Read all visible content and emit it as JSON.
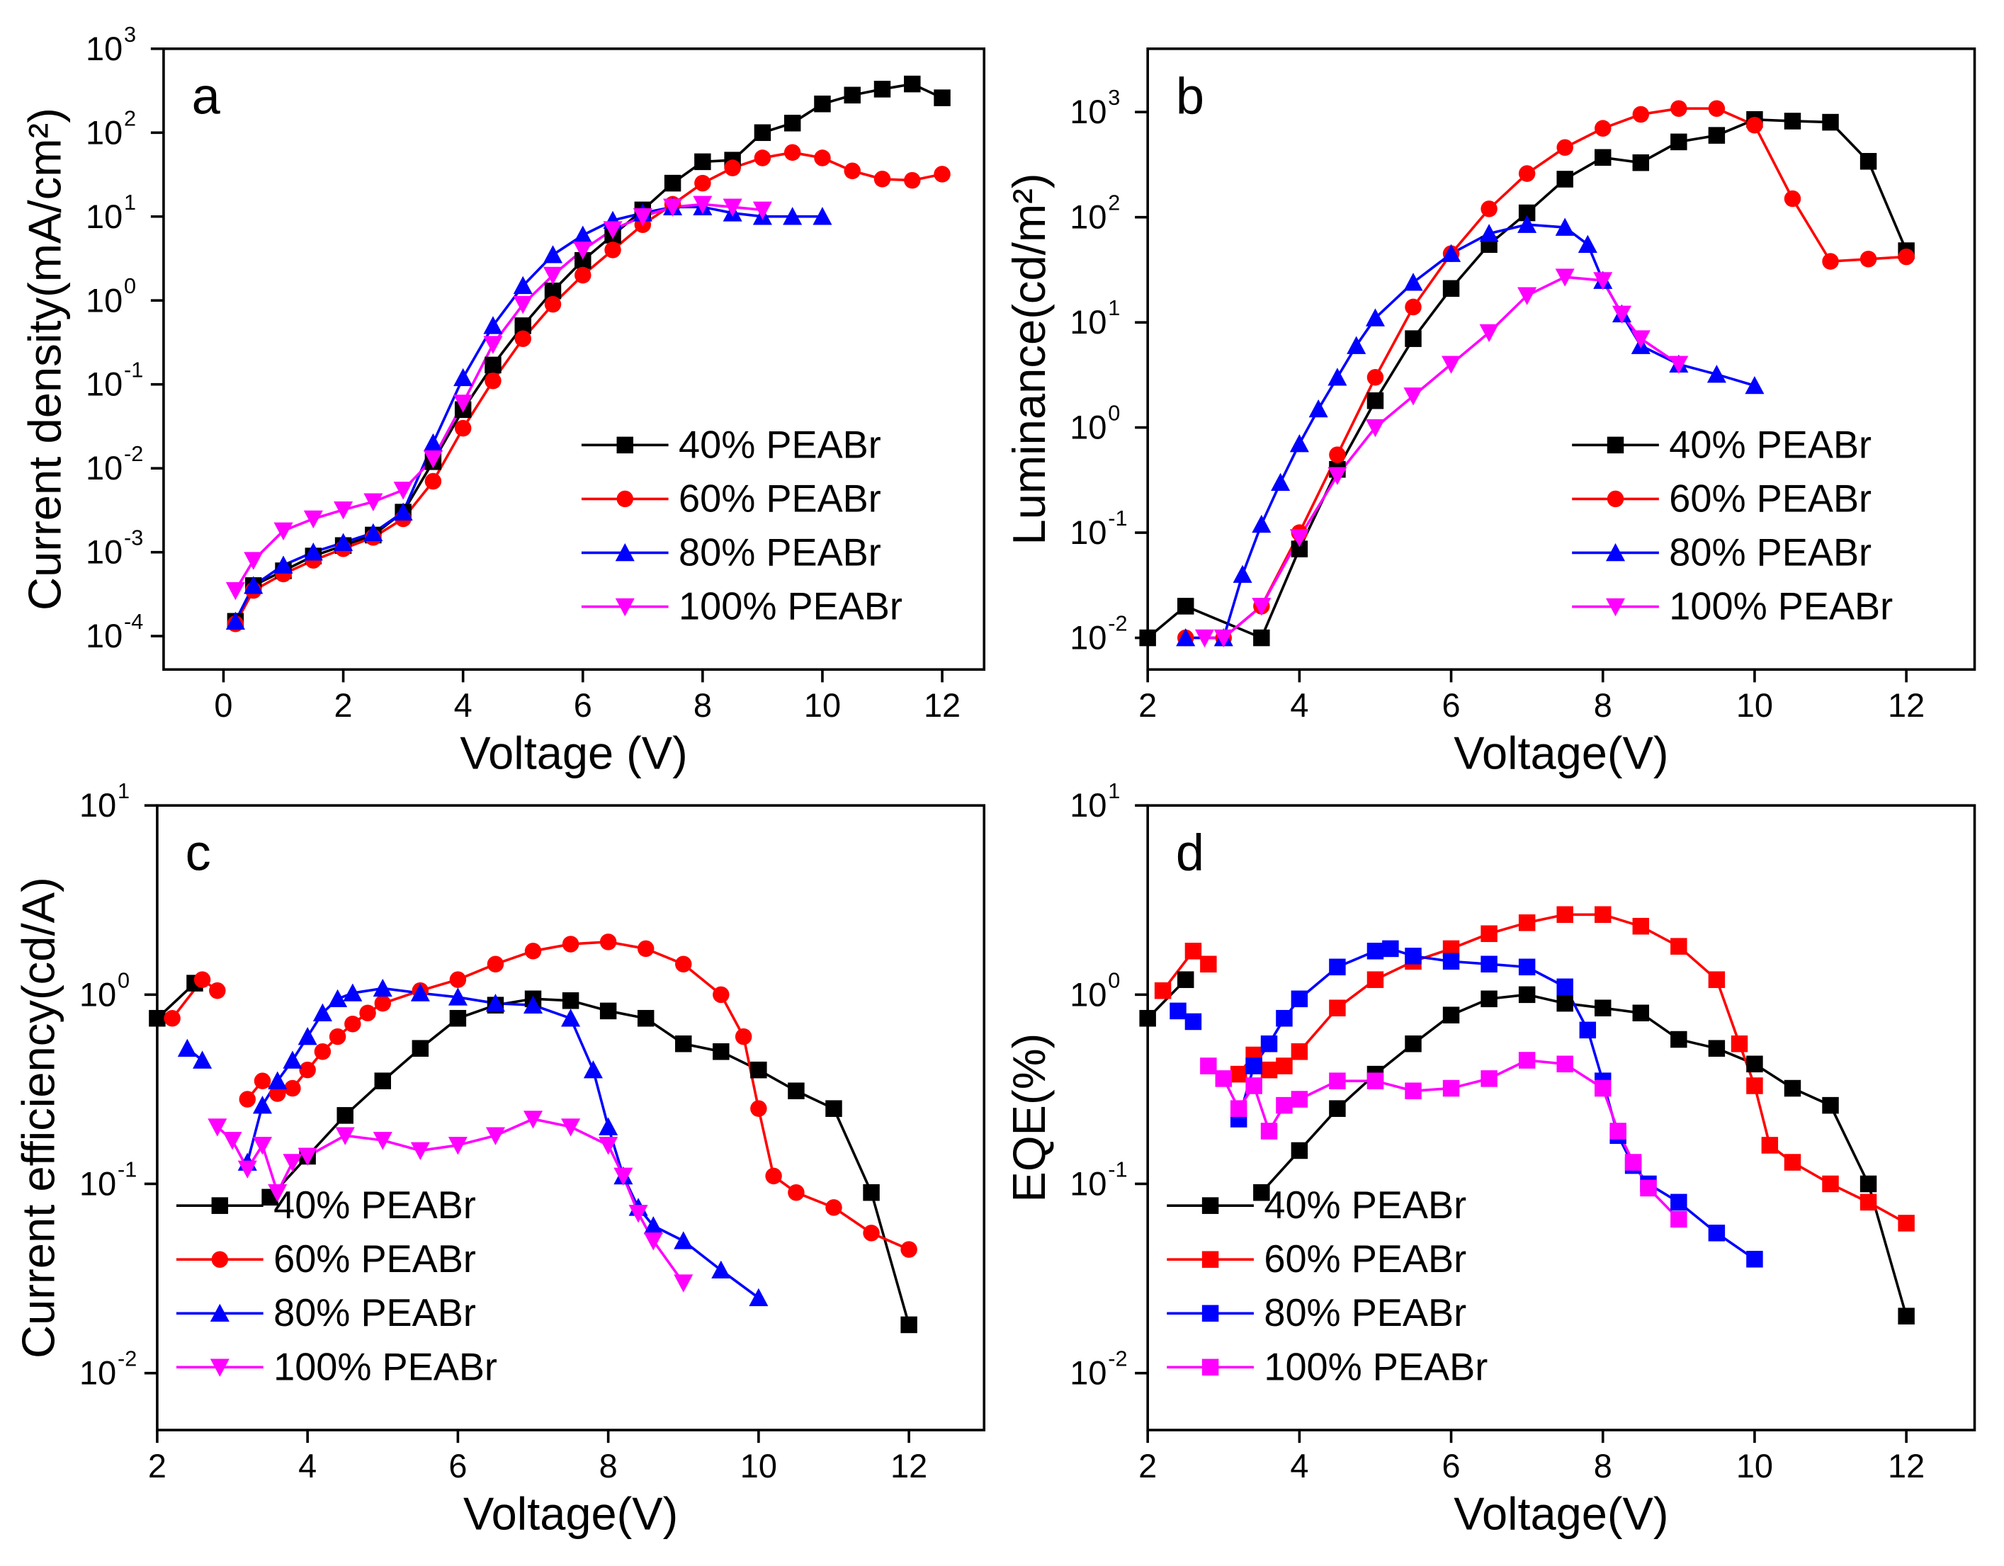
{
  "chart_data": [
    {
      "type": "line",
      "label": "a",
      "xlabel": "Voltage (V)",
      "ylabel": "Current density(mA/cm²)",
      "log_y": true,
      "legend": "lower right",
      "xlim": [
        -1,
        12.7
      ],
      "xticks": [
        0,
        2,
        4,
        6,
        8,
        10,
        12
      ],
      "ylim": [
        4e-05,
        1000
      ],
      "yticks": [
        {
          "value": 0.0001,
          "label": "10",
          "sup": "-4"
        },
        {
          "value": 0.001,
          "label": "10",
          "sup": "-3"
        },
        {
          "value": 0.01,
          "label": "10",
          "sup": "-2"
        },
        {
          "value": 0.1,
          "label": "10",
          "sup": "-1"
        },
        {
          "value": 1,
          "label": "10",
          "sup": "0"
        },
        {
          "value": 10,
          "label": "10",
          "sup": "1"
        },
        {
          "value": 100,
          "label": "10",
          "sup": "2"
        },
        {
          "value": 1000,
          "label": "10",
          "sup": "3"
        }
      ],
      "series": [
        {
          "name": "40% PEABr",
          "color": "#000000",
          "marker": "square",
          "x": [
            0.2,
            0.5,
            1,
            1.5,
            2,
            2.5,
            3,
            3.5,
            4,
            4.5,
            5,
            5.5,
            6,
            6.5,
            7,
            7.5,
            8,
            8.5,
            9,
            9.5,
            10,
            10.5,
            11,
            11.5,
            12
          ],
          "values": [
            0.00015,
            0.0004,
            0.0006,
            0.0009,
            0.0012,
            0.0016,
            0.003,
            0.012,
            0.05,
            0.17,
            0.5,
            1.3,
            3,
            6,
            12,
            25,
            45,
            47,
            100,
            130,
            220,
            280,
            330,
            380,
            260
          ]
        },
        {
          "name": "60% PEABr",
          "color": "#ff0000",
          "marker": "circle",
          "x": [
            0.2,
            0.5,
            1,
            1.5,
            2,
            2.5,
            3,
            3.5,
            4,
            4.5,
            5,
            5.5,
            6,
            6.5,
            7,
            7.5,
            8,
            8.5,
            9,
            9.5,
            10,
            10.5,
            11,
            11.5,
            12
          ],
          "values": [
            0.00014,
            0.00035,
            0.00055,
            0.0008,
            0.0011,
            0.0015,
            0.0025,
            0.007,
            0.03,
            0.11,
            0.35,
            0.9,
            2,
            4,
            8,
            14,
            25,
            38,
            50,
            58,
            50,
            35,
            28,
            27,
            32
          ]
        },
        {
          "name": "80% PEABr",
          "color": "#0000ff",
          "marker": "triangle-up",
          "x": [
            0.2,
            0.5,
            1,
            1.5,
            2,
            2.5,
            3,
            3.5,
            4,
            4.5,
            5,
            5.5,
            6,
            6.5,
            7,
            7.5,
            8,
            8.5,
            9,
            9.5,
            10
          ],
          "values": [
            0.00015,
            0.0004,
            0.0007,
            0.001,
            0.0013,
            0.0017,
            0.003,
            0.02,
            0.12,
            0.5,
            1.5,
            3.5,
            6,
            9,
            11,
            13,
            13,
            11,
            10,
            10,
            10
          ]
        },
        {
          "name": "100% PEABr",
          "color": "#ff00ff",
          "marker": "triangle-down",
          "x": [
            0.2,
            0.5,
            1,
            1.5,
            2,
            2.5,
            3,
            3.5,
            4,
            4.5,
            5,
            5.5,
            6,
            6.5,
            7,
            7.5,
            8,
            8.5,
            9
          ],
          "values": [
            0.00035,
            0.0008,
            0.0018,
            0.0025,
            0.0032,
            0.004,
            0.0055,
            0.013,
            0.06,
            0.3,
            0.9,
            2,
            4,
            7,
            10,
            13,
            14,
            13,
            12
          ]
        }
      ]
    },
    {
      "type": "line",
      "label": "b",
      "xlabel": "Voltage(V)",
      "ylabel": "Luminance(cd/m²)",
      "log_y": true,
      "legend": "lower right",
      "xlim": [
        2,
        12.9
      ],
      "xticks": [
        2,
        4,
        6,
        8,
        10,
        12
      ],
      "ylim": [
        0.005,
        4000
      ],
      "yticks": [
        {
          "value": 0.01,
          "label": "10",
          "sup": "-2"
        },
        {
          "value": 0.1,
          "label": "10",
          "sup": "-1"
        },
        {
          "value": 1,
          "label": "10",
          "sup": "0"
        },
        {
          "value": 10,
          "label": "10",
          "sup": "1"
        },
        {
          "value": 100,
          "label": "10",
          "sup": "2"
        },
        {
          "value": 1000,
          "label": "10",
          "sup": "3"
        }
      ],
      "series": [
        {
          "name": "40% PEABr",
          "color": "#000000",
          "marker": "square",
          "x": [
            2,
            2.5,
            3.5,
            4,
            4.5,
            5,
            5.5,
            6,
            6.5,
            7,
            7.5,
            8,
            8.5,
            9,
            9.5,
            10,
            10.5,
            11,
            11.5,
            12
          ],
          "values": [
            0.01,
            0.02,
            0.01,
            0.07,
            0.4,
            1.8,
            7,
            21,
            55,
            110,
            230,
            370,
            330,
            520,
            600,
            850,
            820,
            800,
            340,
            48
          ]
        },
        {
          "name": "60% PEABr",
          "color": "#ff0000",
          "marker": "circle",
          "x": [
            2.5,
            3,
            3.5,
            4,
            4.5,
            5,
            5.5,
            6,
            6.5,
            7,
            7.5,
            8,
            8.5,
            9,
            9.5,
            10,
            10.5,
            11,
            11.5,
            12
          ],
          "values": [
            0.01,
            0.01,
            0.02,
            0.1,
            0.55,
            3,
            14,
            45,
            120,
            260,
            460,
            700,
            950,
            1080,
            1080,
            750,
            150,
            38,
            40,
            42
          ]
        },
        {
          "name": "80% PEABr",
          "color": "#0000ff",
          "marker": "triangle-up",
          "x": [
            2.5,
            3,
            3.25,
            3.5,
            3.75,
            4,
            4.25,
            4.5,
            4.75,
            5,
            5.5,
            6,
            6.5,
            7,
            7.5,
            7.8,
            8,
            8.25,
            8.5,
            9,
            9.5,
            10
          ],
          "values": [
            0.01,
            0.01,
            0.04,
            0.12,
            0.3,
            0.7,
            1.5,
            3,
            6,
            11,
            24,
            45,
            70,
            85,
            80,
            55,
            25,
            12,
            6,
            4,
            3.2,
            2.5
          ]
        },
        {
          "name": "100% PEABr",
          "color": "#ff00ff",
          "marker": "triangle-down",
          "x": [
            2.75,
            3,
            3.5,
            4,
            4.5,
            5,
            5.5,
            6,
            6.5,
            7,
            7.5,
            8,
            8.25,
            8.5,
            9
          ],
          "values": [
            0.01,
            0.01,
            0.02,
            0.09,
            0.35,
            1,
            2,
            4,
            8,
            18,
            27,
            25,
            12,
            7,
            4
          ]
        }
      ]
    },
    {
      "type": "line",
      "label": "c",
      "xlabel": "Voltage(V)",
      "ylabel": "Current efficiency(cd/A)",
      "log_y": true,
      "legend": "lower left",
      "xlim": [
        2,
        13
      ],
      "xticks": [
        2,
        4,
        6,
        8,
        10,
        12
      ],
      "ylim": [
        0.005,
        10
      ],
      "yticks": [
        {
          "value": 0.01,
          "label": "10",
          "sup": "-2"
        },
        {
          "value": 0.1,
          "label": "10",
          "sup": "-1"
        },
        {
          "value": 1,
          "label": "10",
          "sup": "0"
        },
        {
          "value": 10,
          "label": "10",
          "sup": "1"
        }
      ],
      "series": [
        {
          "name": "40% PEABr",
          "color": "#000000",
          "marker": "square",
          "x": [
            2,
            2.5,
            3,
            3.5,
            4,
            4.5,
            5,
            5.5,
            6,
            6.5,
            7,
            7.5,
            8,
            8.5,
            9,
            9.5,
            10,
            10.5,
            11,
            11.5,
            12
          ],
          "values": [
            0.75,
            1.15,
            null,
            0.085,
            0.14,
            0.23,
            0.35,
            0.52,
            0.75,
            0.88,
            0.95,
            0.93,
            0.82,
            0.75,
            0.55,
            0.5,
            0.4,
            0.31,
            0.25,
            0.09,
            0.018
          ]
        },
        {
          "name": "60% PEABr",
          "color": "#ff0000",
          "marker": "circle",
          "x": [
            2.2,
            2.6,
            2.8,
            3,
            3.2,
            3.4,
            3.6,
            3.8,
            4,
            4.2,
            4.4,
            4.6,
            4.8,
            5,
            5.5,
            6,
            6.5,
            7,
            7.5,
            8,
            8.5,
            9,
            9.5,
            9.8,
            10,
            10.2,
            10.5,
            11,
            11.5,
            12
          ],
          "values": [
            0.75,
            1.2,
            1.05,
            null,
            0.28,
            0.35,
            0.3,
            0.32,
            0.4,
            0.5,
            0.6,
            0.7,
            0.8,
            0.9,
            1.05,
            1.2,
            1.45,
            1.7,
            1.85,
            1.9,
            1.75,
            1.45,
            1.0,
            0.6,
            0.25,
            0.11,
            0.09,
            0.075,
            0.055,
            0.045
          ]
        },
        {
          "name": "80% PEABr",
          "color": "#0000ff",
          "marker": "triangle-up",
          "x": [
            2.4,
            2.6,
            3,
            3.2,
            3.4,
            3.6,
            3.8,
            4,
            4.2,
            4.4,
            4.6,
            5,
            5.5,
            6,
            6.5,
            7,
            7.5,
            7.8,
            8,
            8.2,
            8.4,
            8.6,
            9,
            9.5,
            10
          ],
          "values": [
            0.52,
            0.45,
            null,
            0.13,
            0.26,
            0.35,
            0.45,
            0.6,
            0.8,
            0.95,
            1.02,
            1.08,
            1.02,
            0.97,
            0.9,
            0.88,
            0.75,
            0.4,
            0.2,
            0.11,
            0.075,
            0.06,
            0.05,
            0.035,
            0.025
          ]
        },
        {
          "name": "100% PEABr",
          "color": "#ff00ff",
          "marker": "triangle-down",
          "x": [
            2.8,
            3,
            3.2,
            3.4,
            3.6,
            3.8,
            4,
            4.5,
            5,
            5.5,
            6,
            6.5,
            7,
            7.5,
            8,
            8.2,
            8.4,
            8.6,
            9
          ],
          "values": [
            0.2,
            0.17,
            0.12,
            0.16,
            0.09,
            0.13,
            0.14,
            0.18,
            0.17,
            0.15,
            0.16,
            0.18,
            0.22,
            0.2,
            0.16,
            0.11,
            0.07,
            0.05,
            0.03
          ]
        }
      ]
    },
    {
      "type": "line",
      "label": "d",
      "xlabel": "Voltage(V)",
      "ylabel": "EQE(%)",
      "log_y": true,
      "legend": "lower left",
      "xlim": [
        2,
        12.9
      ],
      "xticks": [
        2,
        4,
        6,
        8,
        10,
        12
      ],
      "ylim": [
        0.005,
        10
      ],
      "yticks": [
        {
          "value": 0.01,
          "label": "10",
          "sup": "-2"
        },
        {
          "value": 0.1,
          "label": "10",
          "sup": "-1"
        },
        {
          "value": 1,
          "label": "10",
          "sup": "0"
        },
        {
          "value": 10,
          "label": "10",
          "sup": "1"
        }
      ],
      "series": [
        {
          "name": "40% PEABr",
          "color": "#000000",
          "marker": "square",
          "x": [
            2,
            2.5,
            3,
            3.5,
            4,
            4.5,
            5,
            5.5,
            6,
            6.5,
            7,
            7.5,
            8,
            8.5,
            9,
            9.5,
            10,
            10.5,
            11,
            11.5,
            12
          ],
          "values": [
            0.75,
            1.2,
            null,
            0.09,
            0.15,
            0.25,
            0.38,
            0.55,
            0.78,
            0.95,
            1.0,
            0.9,
            0.85,
            0.8,
            0.58,
            0.52,
            0.43,
            0.32,
            0.26,
            0.1,
            0.02
          ]
        },
        {
          "name": "60% PEABr",
          "color": "#ff0000",
          "marker": "square",
          "x": [
            2.2,
            2.6,
            2.8,
            3,
            3.2,
            3.4,
            3.6,
            3.8,
            4,
            4.5,
            5,
            5.5,
            6,
            6.5,
            7,
            7.5,
            8,
            8.5,
            9,
            9.5,
            9.8,
            10,
            10.2,
            10.5,
            11,
            11.5,
            12
          ],
          "values": [
            1.05,
            1.7,
            1.45,
            null,
            0.38,
            0.48,
            0.4,
            0.42,
            0.5,
            0.85,
            1.2,
            1.5,
            1.75,
            2.1,
            2.4,
            2.65,
            2.65,
            2.3,
            1.8,
            1.2,
            0.55,
            0.33,
            0.16,
            0.13,
            0.1,
            0.08,
            0.062
          ]
        },
        {
          "name": "80% PEABr",
          "color": "#0000ff",
          "marker": "square",
          "x": [
            2.4,
            2.6,
            3,
            3.2,
            3.4,
            3.6,
            3.8,
            4,
            4.5,
            5,
            5.2,
            5.5,
            6,
            6.5,
            7,
            7.5,
            7.8,
            8,
            8.2,
            8.4,
            8.6,
            9,
            9.5,
            10
          ],
          "values": [
            0.82,
            0.72,
            null,
            0.22,
            0.42,
            0.55,
            0.75,
            0.95,
            1.4,
            1.7,
            1.75,
            1.6,
            1.5,
            1.45,
            1.4,
            1.1,
            0.65,
            0.35,
            0.18,
            0.125,
            0.1,
            0.08,
            0.055,
            0.04
          ]
        },
        {
          "name": "100% PEABr",
          "color": "#ff00ff",
          "marker": "square",
          "x": [
            2.8,
            3,
            3.2,
            3.4,
            3.6,
            3.8,
            4,
            4.5,
            5,
            5.5,
            6,
            6.5,
            7,
            7.5,
            8,
            8.2,
            8.4,
            8.6,
            9
          ],
          "values": [
            0.42,
            0.36,
            0.25,
            0.33,
            0.19,
            0.26,
            0.28,
            0.35,
            0.35,
            0.31,
            0.32,
            0.36,
            0.45,
            0.43,
            0.32,
            0.19,
            0.13,
            0.095,
            0.065
          ]
        }
      ]
    }
  ]
}
